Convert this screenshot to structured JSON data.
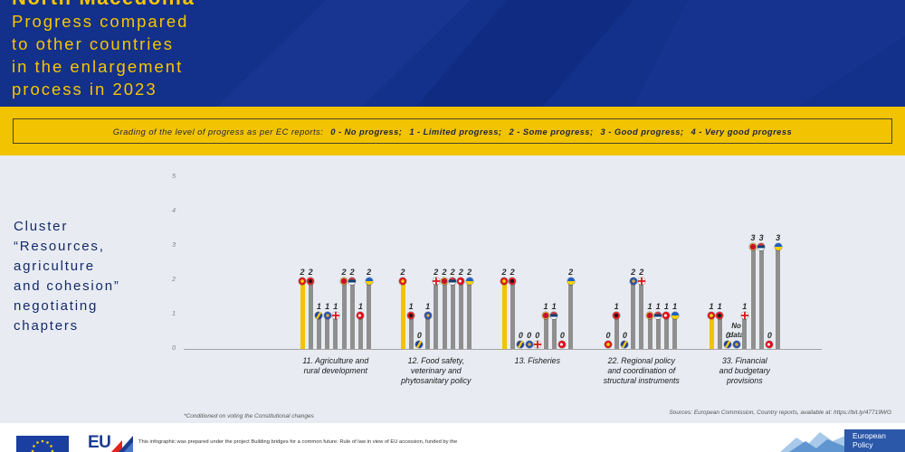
{
  "theme": {
    "header_bg": "#13308a",
    "title_yellow": "#f7c600",
    "band_yellow": "#f2c300",
    "main_bg": "#e8ecf2",
    "ink": "#15296b",
    "bar_gray": "#8f8f8f"
  },
  "header": {
    "country": "North Macedonia",
    "title_lines": [
      "Progress compared",
      "to other countries",
      "in the enlargement",
      "process in 2023"
    ]
  },
  "legend": {
    "intro": "Grading of the level of progress as per EC reports:",
    "grades": [
      "0 - No progress;",
      "1 - Limited progress;",
      "2 - Some progress;",
      "3 - Good progress;",
      "4 - Very good progress"
    ]
  },
  "cluster_label": [
    "Cluster",
    "“Resources,",
    "agriculture",
    "and cohesion”",
    "negotiating",
    "chapters"
  ],
  "chart_data": {
    "type": "bar",
    "categories": [
      "11. Agriculture and\nrural development",
      "12. Food safety,\nveterinary and\nphytosanitary policy",
      "13. Fisheries",
      "22. Regional policy\nand coordination of\nstructural instruments",
      "33. Financial\nand budgetary\nprovisions"
    ],
    "y_ticks": [
      0,
      1,
      2,
      3,
      4,
      5
    ],
    "ylim": [
      0,
      5
    ],
    "grid": false,
    "no_data_label": "No data",
    "series": [
      {
        "icon": "flag-icon",
        "color": "#f2c300",
        "values": [
          2,
          2,
          2,
          0,
          1
        ]
      },
      {
        "icon": "flag-icon",
        "color": "#8f8f8f",
        "values": [
          2,
          1,
          2,
          1,
          1
        ]
      },
      {
        "icon": "flag-icon",
        "color": "#8f8f8f",
        "values": [
          1,
          0,
          0,
          0,
          0
        ]
      },
      {
        "icon": "flag-icon",
        "color": "#8f8f8f",
        "values": [
          1,
          1,
          0,
          2,
          null
        ]
      },
      {
        "icon": "flag-icon",
        "color": "#8f8f8f",
        "values": [
          1,
          2,
          0,
          2,
          1
        ]
      },
      {
        "icon": "flag-icon",
        "color": "#8f8f8f",
        "values": [
          2,
          2,
          1,
          1,
          3
        ]
      },
      {
        "icon": "flag-icon",
        "color": "#8f8f8f",
        "values": [
          2,
          2,
          1,
          1,
          3
        ]
      },
      {
        "icon": "flag-icon",
        "color": "#8f8f8f",
        "values": [
          1,
          2,
          0,
          1,
          0
        ]
      },
      {
        "icon": "flag-icon",
        "color": "#8f8f8f",
        "values": [
          2,
          2,
          2,
          1,
          3
        ]
      }
    ]
  },
  "footnote": "*Conditioned on voting the Constitutional changes",
  "sources": "Sources: European Commission, Country reports, available at: https://bit.ly/47719WG",
  "footer": {
    "funding_text": "This infographic was prepared under the project Building bridges for a common future: Rule of law in view of EU accession, funded by the",
    "eu_logo_text": "EU",
    "epi_logo_lines": [
      "European",
      "Policy"
    ],
    "icons": [
      "eu-flag-icon",
      "eu-logo-icon",
      "mountains-logo-icon"
    ]
  }
}
